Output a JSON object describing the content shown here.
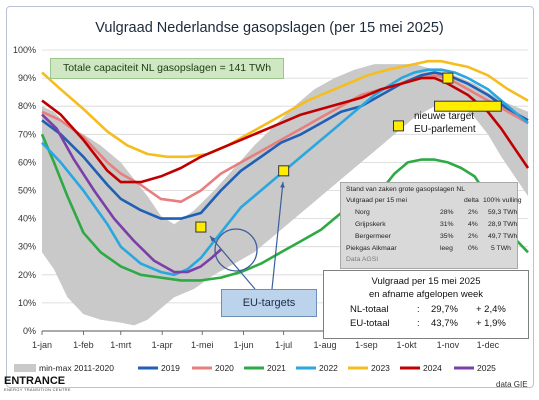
{
  "chart_data": {
    "type": "line",
    "title": "Vulgraad Nederlandse gasopslagen (per 15 mei 2025)",
    "x_ticks": [
      "1-jan",
      "1-feb",
      "1-mrt",
      "1-apr",
      "1-mei",
      "1-jun",
      "1-jul",
      "1-aug",
      "1-sep",
      "1-okt",
      "1-nov",
      "1-dec"
    ],
    "y_ticks": [
      "0%",
      "10%",
      "20%",
      "30%",
      "40%",
      "50%",
      "60%",
      "70%",
      "80%",
      "90%",
      "100%"
    ],
    "ylim": [
      0,
      100
    ],
    "xlim": [
      1,
      365
    ],
    "band": {
      "name": "min-max 2011-2020",
      "color": "#c9c9c9",
      "x": [
        1,
        10,
        20,
        32,
        45,
        60,
        70,
        80,
        90,
        100,
        115,
        130,
        145,
        160,
        175,
        190,
        205,
        220,
        235,
        250,
        265,
        280,
        295,
        305,
        315,
        325,
        335,
        345,
        355,
        365
      ],
      "lower": [
        28,
        22,
        12,
        6,
        4,
        3,
        2,
        4,
        8,
        12,
        15,
        20,
        24,
        28,
        34,
        40,
        46,
        52,
        58,
        64,
        70,
        76,
        80,
        82,
        80,
        76,
        70,
        62,
        55,
        48
      ],
      "upper": [
        80,
        78,
        73,
        70,
        66,
        60,
        54,
        48,
        41,
        38,
        43,
        50,
        58,
        66,
        73,
        80,
        86,
        90,
        93,
        95,
        95,
        95,
        93,
        92,
        90,
        88,
        85,
        82,
        80,
        78
      ]
    },
    "series": [
      {
        "name": "2019",
        "color": "#1f5fb4",
        "x": [
          1,
          15,
          32,
          50,
          60,
          75,
          90,
          105,
          120,
          135,
          150,
          165,
          180,
          195,
          210,
          225,
          240,
          255,
          270,
          285,
          295,
          305,
          320,
          335,
          350,
          365
        ],
        "values": [
          75,
          70,
          62,
          52,
          47,
          43,
          40,
          40,
          42,
          50,
          57,
          62,
          67,
          70,
          74,
          78,
          80,
          84,
          88,
          91,
          92,
          91,
          88,
          84,
          79,
          75
        ]
      },
      {
        "name": "2020",
        "color": "#e77f7f",
        "x": [
          1,
          15,
          32,
          50,
          60,
          75,
          90,
          105,
          120,
          135,
          150,
          165,
          180,
          195,
          210,
          225,
          240,
          255,
          270,
          285,
          295,
          305,
          320,
          335,
          350,
          365
        ],
        "values": [
          78,
          75,
          69,
          60,
          56,
          52,
          47,
          46,
          50,
          56,
          60,
          64,
          68,
          72,
          76,
          80,
          84,
          86,
          88,
          90,
          91,
          90,
          86,
          82,
          78,
          74
        ]
      },
      {
        "name": "2021",
        "color": "#2daa44",
        "x": [
          1,
          10,
          20,
          32,
          45,
          60,
          75,
          90,
          105,
          120,
          135,
          150,
          165,
          180,
          195,
          210,
          225,
          240,
          255,
          265,
          275,
          285,
          295,
          305,
          315,
          325,
          335,
          345,
          355,
          365
        ],
        "values": [
          70,
          60,
          48,
          35,
          28,
          23,
          20,
          19,
          18,
          18,
          19,
          21,
          24,
          28,
          32,
          36,
          42,
          46,
          50,
          56,
          60,
          61,
          61,
          60,
          58,
          55,
          48,
          40,
          33,
          28
        ]
      },
      {
        "name": "2022",
        "color": "#2aa7de",
        "x": [
          1,
          15,
          32,
          50,
          60,
          75,
          90,
          100,
          110,
          120,
          130,
          140,
          150,
          160,
          175,
          190,
          205,
          220,
          235,
          250,
          260,
          270,
          280,
          290,
          300,
          310,
          320,
          335,
          350,
          365
        ],
        "values": [
          67,
          60,
          50,
          38,
          30,
          24,
          21,
          20,
          22,
          26,
          32,
          38,
          44,
          48,
          54,
          60,
          66,
          72,
          78,
          84,
          87,
          90,
          92,
          93,
          93,
          92,
          90,
          86,
          80,
          74
        ]
      },
      {
        "name": "2023",
        "color": "#f5bd1f",
        "x": [
          1,
          15,
          32,
          50,
          65,
          80,
          95,
          110,
          125,
          140,
          155,
          170,
          185,
          200,
          215,
          230,
          245,
          260,
          270,
          280,
          290,
          300,
          310,
          320,
          335,
          350,
          365
        ],
        "values": [
          92,
          86,
          79,
          71,
          66,
          63,
          62,
          62,
          63,
          66,
          70,
          74,
          78,
          82,
          85,
          88,
          91,
          93,
          94,
          95,
          96,
          96,
          95,
          94,
          91,
          86,
          82
        ]
      },
      {
        "name": "2024",
        "color": "#c00000",
        "x": [
          1,
          15,
          32,
          50,
          60,
          75,
          90,
          105,
          120,
          135,
          150,
          165,
          180,
          195,
          210,
          225,
          240,
          255,
          270,
          285,
          295,
          305,
          320,
          335,
          345,
          355,
          365
        ],
        "values": [
          82,
          77,
          68,
          57,
          53,
          53,
          55,
          58,
          62,
          65,
          68,
          71,
          74,
          77,
          79,
          81,
          83,
          86,
          88,
          90,
          90,
          88,
          84,
          78,
          72,
          65,
          58
        ]
      },
      {
        "name": "2025",
        "color": "#7a3fa8",
        "x": [
          1,
          12,
          25,
          40,
          55,
          70,
          85,
          100,
          110,
          120,
          128,
          135
        ],
        "values": [
          77,
          72,
          61,
          50,
          40,
          32,
          25,
          21,
          21,
          23,
          26,
          29
        ]
      }
    ],
    "targets": [
      {
        "x": 120,
        "value": 37
      },
      {
        "x": 182,
        "value": 57
      },
      {
        "x": 268,
        "value": 73
      },
      {
        "x": 305,
        "value": 90
      }
    ],
    "new_target": {
      "x_start": 295,
      "x_end": 345,
      "value": 80
    },
    "legend_position": "bottom",
    "source": "data GIE"
  },
  "capacity_note": "Totale capaciteit NL gasopslagen = 141 TWh",
  "new_target_label_1": "nieuwe target",
  "new_target_label_2": "EU-parlement",
  "eu_targets_label": "EU-targets",
  "table": {
    "title": "Stand van zaken grote gasopslagen NL",
    "header": {
      "name": "Vulgraad per 15 mei",
      "pct": "",
      "delta": "delta",
      "full": "100% vulling"
    },
    "rows": [
      {
        "name": "Norg",
        "pct": "28%",
        "delta": "2%",
        "full": "59,3 TWh"
      },
      {
        "name": "Grijpskerk",
        "pct": "31%",
        "delta": "4%",
        "full": "28,9 TWh"
      },
      {
        "name": "Bergermeer",
        "pct": "35%",
        "delta": "2%",
        "full": "49,7 TWh"
      },
      {
        "name": "Piekgas Alkmaar",
        "pct": "leeg",
        "delta": "0%",
        "full": "5 TWh"
      }
    ],
    "source": "Data AGSI"
  },
  "summary": {
    "line1": "Vulgraad per 15 mei 2025",
    "line2": "en afname afgelopen week",
    "nl_label": "NL-totaal",
    "nl_colon": ":",
    "nl_value": "29,7%",
    "nl_delta": "+ 2,4%",
    "eu_label": "EU-totaal",
    "eu_colon": ":",
    "eu_value": "43,7%",
    "eu_delta": "+ 1,9%"
  },
  "logo_text": "ENTRANCE",
  "logo_sub": "ENERGY TRANSITION CENTRE",
  "source_label": "data GIE"
}
